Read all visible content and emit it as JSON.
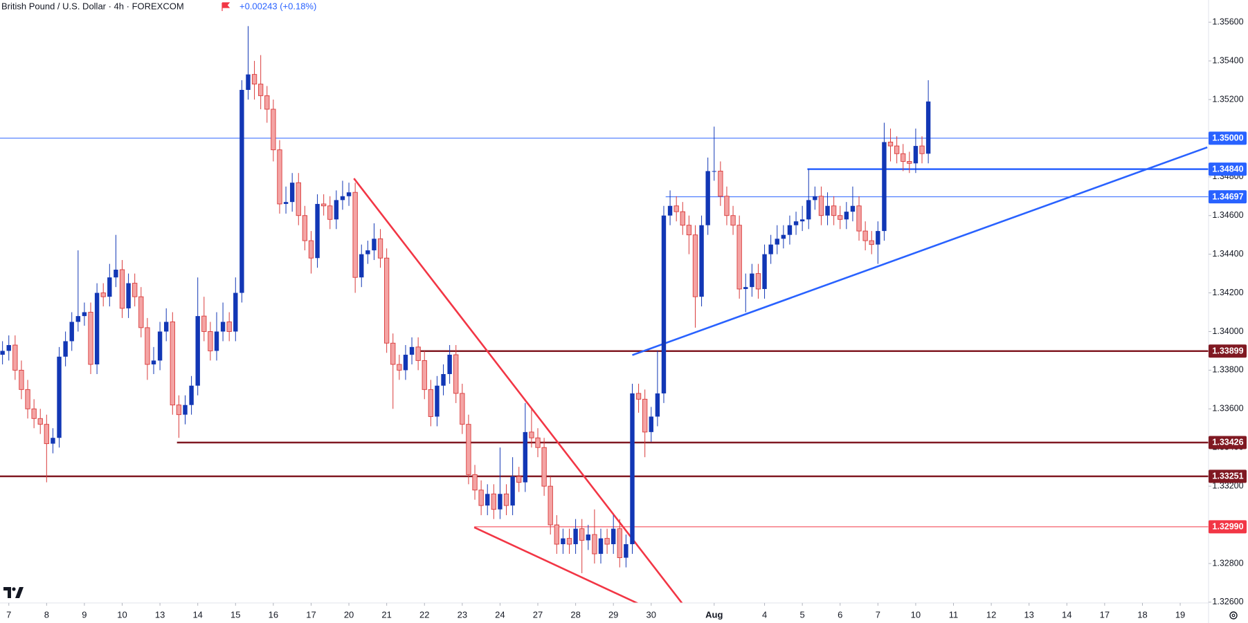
{
  "chart_data": {
    "type": "candlestick",
    "title": "British Pound / U.S. Dollar · 4h · FOREXCOM",
    "change": "+0.00243 (+0.18%)",
    "up_color": "#1237b5",
    "down_color": "#f4a4a4",
    "down_edge": "#d93a3a",
    "open": [
      1.3388,
      1.339,
      1.3393,
      1.338,
      1.337,
      1.336,
      1.3355,
      1.3352,
      1.3342,
      1.3345,
      1.3387,
      1.3395,
      1.3405,
      1.3408,
      1.341,
      1.3383,
      1.342,
      1.3418,
      1.3428,
      1.3432,
      1.3412,
      1.3425,
      1.3418,
      1.3402,
      1.3383,
      1.3385,
      1.34,
      1.3405,
      1.3362,
      1.3357,
      1.3362,
      1.3372,
      1.3408,
      1.34,
      1.339,
      1.34,
      1.3405,
      1.34,
      1.342,
      1.3525,
      1.3533,
      1.3528,
      1.3522,
      1.3515,
      1.3494,
      1.3466,
      1.3467,
      1.3477,
      1.346,
      1.3447,
      1.3438,
      1.3466,
      1.3465,
      1.3458,
      1.3468,
      1.347,
      1.3472,
      1.3428,
      1.344,
      1.3442,
      1.3448,
      1.3438,
      1.3394,
      1.3383,
      1.338,
      1.3388,
      1.3392,
      1.3385,
      1.337,
      1.3356,
      1.3372,
      1.3378,
      1.3388,
      1.3368,
      1.3352,
      1.3326,
      1.3318,
      1.331,
      1.3316,
      1.3308,
      1.3316,
      1.331,
      1.3325,
      1.3322,
      1.3348,
      1.3345,
      1.334,
      1.332,
      1.33,
      1.329,
      1.3293,
      1.329,
      1.3298,
      1.3292,
      1.3295,
      1.3285,
      1.3293,
      1.329,
      1.3298,
      1.3283,
      1.329,
      1.3368,
      1.3365,
      1.3348,
      1.3356,
      1.3368,
      1.346,
      1.3465,
      1.3462,
      1.3455,
      1.345,
      1.3418,
      1.3455,
      1.3483,
      1.3483,
      1.347,
      1.346,
      1.3455,
      1.3422,
      1.3423,
      1.343,
      1.3422,
      1.344,
      1.3445,
      1.3448,
      1.345,
      1.3455,
      1.3457,
      1.3458,
      1.3468,
      1.347,
      1.346,
      1.3465,
      1.346,
      1.3458,
      1.3462,
      1.3465,
      1.3452,
      1.3447,
      1.3445,
      1.3452,
      1.3498,
      1.3496,
      1.3492,
      1.3488,
      1.3487,
      1.3496,
      1.3492
    ],
    "high": [
      1.3395,
      1.3398,
      1.3398,
      1.3385,
      1.3375,
      1.3365,
      1.336,
      1.3357,
      1.335,
      1.3392,
      1.34,
      1.341,
      1.3442,
      1.3415,
      1.3415,
      1.3425,
      1.3425,
      1.3435,
      1.345,
      1.3437,
      1.343,
      1.343,
      1.3423,
      1.3407,
      1.3392,
      1.3405,
      1.3412,
      1.341,
      1.3367,
      1.3367,
      1.3377,
      1.3428,
      1.3418,
      1.3405,
      1.341,
      1.3415,
      1.341,
      1.3428,
      1.353,
      1.3558,
      1.354,
      1.3543,
      1.3527,
      1.352,
      1.3499,
      1.3475,
      1.3482,
      1.3482,
      1.3465,
      1.3452,
      1.3471,
      1.3471,
      1.347,
      1.3473,
      1.3478,
      1.3477,
      1.3477,
      1.3445,
      1.3447,
      1.3456,
      1.3453,
      1.3443,
      1.3399,
      1.3388,
      1.3393,
      1.3397,
      1.3397,
      1.339,
      1.3375,
      1.3377,
      1.3383,
      1.3393,
      1.3393,
      1.3373,
      1.3357,
      1.3331,
      1.3323,
      1.3321,
      1.3321,
      1.334,
      1.3321,
      1.3335,
      1.333,
      1.3363,
      1.336,
      1.335,
      1.3345,
      1.3325,
      1.3305,
      1.3298,
      1.3298,
      1.3303,
      1.3303,
      1.33,
      1.3308,
      1.3298,
      1.3298,
      1.3305,
      1.3303,
      1.3295,
      1.3373,
      1.3373,
      1.337,
      1.3361,
      1.339,
      1.3465,
      1.3473,
      1.347,
      1.3467,
      1.346,
      1.3455,
      1.346,
      1.349,
      1.3506,
      1.3488,
      1.3475,
      1.3465,
      1.346,
      1.343,
      1.3435,
      1.3435,
      1.3445,
      1.345,
      1.3455,
      1.3455,
      1.346,
      1.3462,
      1.3465,
      1.3484,
      1.3475,
      1.3475,
      1.3472,
      1.347,
      1.3465,
      1.3467,
      1.3475,
      1.347,
      1.3457,
      1.3452,
      1.3457,
      1.3508,
      1.3505,
      1.3501,
      1.3497,
      1.3493,
      1.3505,
      1.3501,
      1.353
    ],
    "low": [
      1.3383,
      1.3385,
      1.3375,
      1.3365,
      1.3355,
      1.335,
      1.3347,
      1.3322,
      1.3337,
      1.334,
      1.3382,
      1.339,
      1.34,
      1.3403,
      1.3378,
      1.3378,
      1.3413,
      1.3413,
      1.3423,
      1.3407,
      1.3407,
      1.3413,
      1.3397,
      1.3375,
      1.3378,
      1.338,
      1.3395,
      1.3357,
      1.3345,
      1.3352,
      1.3357,
      1.3367,
      1.3395,
      1.3385,
      1.3385,
      1.3395,
      1.3395,
      1.3395,
      1.3415,
      1.352,
      1.352,
      1.3515,
      1.3508,
      1.3488,
      1.3461,
      1.3461,
      1.3462,
      1.3455,
      1.3442,
      1.343,
      1.3433,
      1.346,
      1.3453,
      1.3453,
      1.3463,
      1.3465,
      1.342,
      1.3423,
      1.3435,
      1.3437,
      1.3433,
      1.3389,
      1.336,
      1.3375,
      1.3375,
      1.3383,
      1.338,
      1.3365,
      1.3351,
      1.3351,
      1.3367,
      1.3373,
      1.3363,
      1.3347,
      1.3321,
      1.3313,
      1.3305,
      1.3305,
      1.3303,
      1.3303,
      1.3305,
      1.3305,
      1.3317,
      1.3317,
      1.334,
      1.3335,
      1.3315,
      1.3295,
      1.3285,
      1.3285,
      1.3285,
      1.3285,
      1.3275,
      1.3287,
      1.328,
      1.328,
      1.3285,
      1.3285,
      1.3278,
      1.3278,
      1.3285,
      1.3358,
      1.3335,
      1.3343,
      1.3351,
      1.3363,
      1.3455,
      1.3457,
      1.345,
      1.344,
      1.3402,
      1.3413,
      1.345,
      1.3478,
      1.3465,
      1.3455,
      1.345,
      1.3417,
      1.341,
      1.3418,
      1.3417,
      1.3417,
      1.3435,
      1.344,
      1.3443,
      1.3445,
      1.345,
      1.3452,
      1.3453,
      1.3463,
      1.3455,
      1.3455,
      1.3455,
      1.3453,
      1.3453,
      1.3457,
      1.3447,
      1.3442,
      1.344,
      1.3435,
      1.3447,
      1.3488,
      1.3487,
      1.3483,
      1.3482,
      1.3482,
      1.3487,
      1.3487
    ],
    "close": [
      1.339,
      1.3393,
      1.338,
      1.337,
      1.336,
      1.3355,
      1.3352,
      1.3342,
      1.3345,
      1.3387,
      1.3395,
      1.3405,
      1.3408,
      1.341,
      1.3383,
      1.342,
      1.3418,
      1.3428,
      1.3432,
      1.3412,
      1.3425,
      1.3418,
      1.3402,
      1.3383,
      1.3385,
      1.34,
      1.3405,
      1.3362,
      1.3357,
      1.3362,
      1.3372,
      1.3408,
      1.34,
      1.339,
      1.34,
      1.3405,
      1.34,
      1.342,
      1.3525,
      1.3533,
      1.3528,
      1.3522,
      1.3515,
      1.3494,
      1.3466,
      1.3467,
      1.3477,
      1.346,
      1.3447,
      1.3438,
      1.3466,
      1.3465,
      1.3458,
      1.3468,
      1.347,
      1.3472,
      1.3428,
      1.344,
      1.3442,
      1.3448,
      1.3438,
      1.3394,
      1.3383,
      1.338,
      1.3388,
      1.3392,
      1.3385,
      1.337,
      1.3356,
      1.3372,
      1.3378,
      1.3388,
      1.3368,
      1.3352,
      1.3326,
      1.3318,
      1.331,
      1.3316,
      1.3308,
      1.3316,
      1.331,
      1.3325,
      1.3322,
      1.3348,
      1.3345,
      1.334,
      1.332,
      1.33,
      1.329,
      1.3293,
      1.329,
      1.3298,
      1.3292,
      1.3295,
      1.3285,
      1.3293,
      1.329,
      1.3298,
      1.3283,
      1.329,
      1.3368,
      1.3365,
      1.3348,
      1.3356,
      1.3368,
      1.346,
      1.3465,
      1.3462,
      1.3455,
      1.345,
      1.3418,
      1.3455,
      1.3483,
      1.3483,
      1.347,
      1.346,
      1.3455,
      1.3422,
      1.3423,
      1.343,
      1.3422,
      1.344,
      1.3445,
      1.3448,
      1.345,
      1.3455,
      1.3457,
      1.3458,
      1.3468,
      1.347,
      1.346,
      1.3465,
      1.346,
      1.3458,
      1.3462,
      1.3465,
      1.3452,
      1.3447,
      1.3445,
      1.3452,
      1.3498,
      1.3496,
      1.3492,
      1.3488,
      1.3487,
      1.3496,
      1.3492,
      1.3519
    ],
    "xlim": [
      -0.4,
      191.5
    ],
    "xticks": [
      {
        "value": 1,
        "label": "7"
      },
      {
        "value": 7,
        "label": "8"
      },
      {
        "value": 13,
        "label": "9"
      },
      {
        "value": 19,
        "label": "10"
      },
      {
        "value": 25,
        "label": "13"
      },
      {
        "value": 31,
        "label": "14"
      },
      {
        "value": 37,
        "label": "15"
      },
      {
        "value": 43,
        "label": "16"
      },
      {
        "value": 49,
        "label": "17"
      },
      {
        "value": 55,
        "label": "20"
      },
      {
        "value": 61,
        "label": "21"
      },
      {
        "value": 67,
        "label": "22"
      },
      {
        "value": 73,
        "label": "23"
      },
      {
        "value": 79,
        "label": "24"
      },
      {
        "value": 85,
        "label": "27"
      },
      {
        "value": 91,
        "label": "28"
      },
      {
        "value": 97,
        "label": "29"
      },
      {
        "value": 103,
        "label": "30"
      },
      {
        "value": 113,
        "label": "Aug"
      },
      {
        "value": 121,
        "label": "4"
      },
      {
        "value": 127,
        "label": "5"
      },
      {
        "value": 133,
        "label": "6"
      },
      {
        "value": 139,
        "label": "7"
      },
      {
        "value": 145,
        "label": "10"
      },
      {
        "value": 151,
        "label": "11"
      },
      {
        "value": 157,
        "label": "12"
      },
      {
        "value": 163,
        "label": "13"
      },
      {
        "value": 169,
        "label": "14"
      },
      {
        "value": 175,
        "label": "17"
      },
      {
        "value": 181,
        "label": "18"
      },
      {
        "value": 187,
        "label": "19"
      }
    ],
    "ylim": [
      1.32596,
      1.35715
    ],
    "yticks": [
      {
        "value": 1.356,
        "label": "1.35600"
      },
      {
        "value": 1.354,
        "label": "1.35400"
      },
      {
        "value": 1.352,
        "label": "1.35200"
      },
      {
        "value": 1.35,
        "label": "1.35000"
      },
      {
        "value": 1.348,
        "label": "1.34800"
      },
      {
        "value": 1.346,
        "label": "1.34600"
      },
      {
        "value": 1.344,
        "label": "1.34400"
      },
      {
        "value": 1.342,
        "label": "1.34200"
      },
      {
        "value": 1.34,
        "label": "1.34000"
      },
      {
        "value": 1.338,
        "label": "1.33800"
      },
      {
        "value": 1.336,
        "label": "1.33600"
      },
      {
        "value": 1.334,
        "label": "1.33400"
      },
      {
        "value": 1.332,
        "label": "1.33200"
      },
      {
        "value": 1.33,
        "label": "1.33000"
      },
      {
        "value": 1.328,
        "label": "1.32800"
      },
      {
        "value": 1.326,
        "label": "1.32600"
      }
    ],
    "levels": [
      {
        "value": 1.35,
        "label": "1.35000",
        "from": -0.4,
        "color": "#2962ff",
        "width": 1
      },
      {
        "value": 1.3484,
        "label": "1.34840",
        "from": 127.8,
        "color": "#2962ff",
        "width": 2.5
      },
      {
        "value": 1.34697,
        "label": "1.34697",
        "from": 105.3,
        "color": "#2962ff",
        "width": 1
      },
      {
        "value": 1.33899,
        "label": "1.33899",
        "from": 65.8,
        "color": "#801922",
        "width": 2.5
      },
      {
        "value": 1.33426,
        "label": "1.33426",
        "from": 27.7,
        "color": "#801922",
        "width": 2.5
      },
      {
        "value": 1.33251,
        "label": "1.33251",
        "from": -0.4,
        "color": "#801922",
        "width": 2.5
      },
      {
        "value": 1.3299,
        "label": "1.32990",
        "from": 74.9,
        "color": "#f23645",
        "width": 1
      }
    ],
    "trendlines": [
      {
        "x": [
          55.8,
          110.5
        ],
        "y": [
          1.34792,
          1.32485
        ],
        "color": "#f23645"
      },
      {
        "x": [
          74.9,
          102.9
        ],
        "y": [
          1.32987,
          1.32563
        ],
        "color": "#f23645"
      },
      {
        "x": [
          100,
          191.3
        ],
        "y": [
          1.33878,
          1.34953
        ],
        "color": "#2962ff"
      }
    ]
  }
}
